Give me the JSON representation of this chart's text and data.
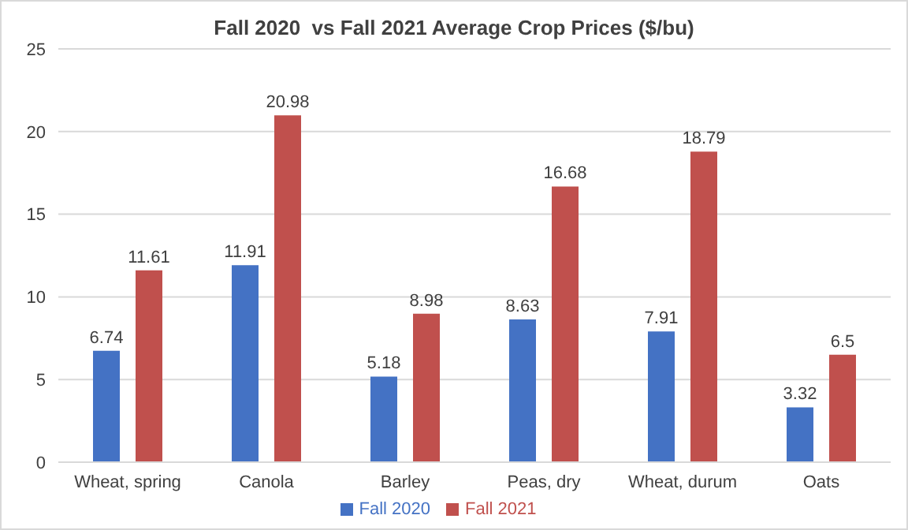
{
  "chart_data": {
    "type": "bar",
    "title": "Fall 2020  vs Fall 2021 Average Crop Prices ($/bu)",
    "categories": [
      "Wheat, spring",
      "Canola",
      "Barley",
      "Peas, dry",
      "Wheat, durum",
      "Oats"
    ],
    "series": [
      {
        "name": "Fall 2020",
        "color": "#4472c4",
        "values": [
          6.74,
          11.91,
          5.18,
          8.63,
          7.91,
          3.32
        ]
      },
      {
        "name": "Fall 2021",
        "color": "#c0504d",
        "values": [
          11.61,
          20.98,
          8.98,
          16.68,
          18.79,
          6.5
        ]
      }
    ],
    "ylim": [
      0,
      25
    ],
    "yticks": [
      0,
      5,
      10,
      15,
      20,
      25
    ],
    "grid": "y",
    "legend": "bottom",
    "data_labels": true
  }
}
